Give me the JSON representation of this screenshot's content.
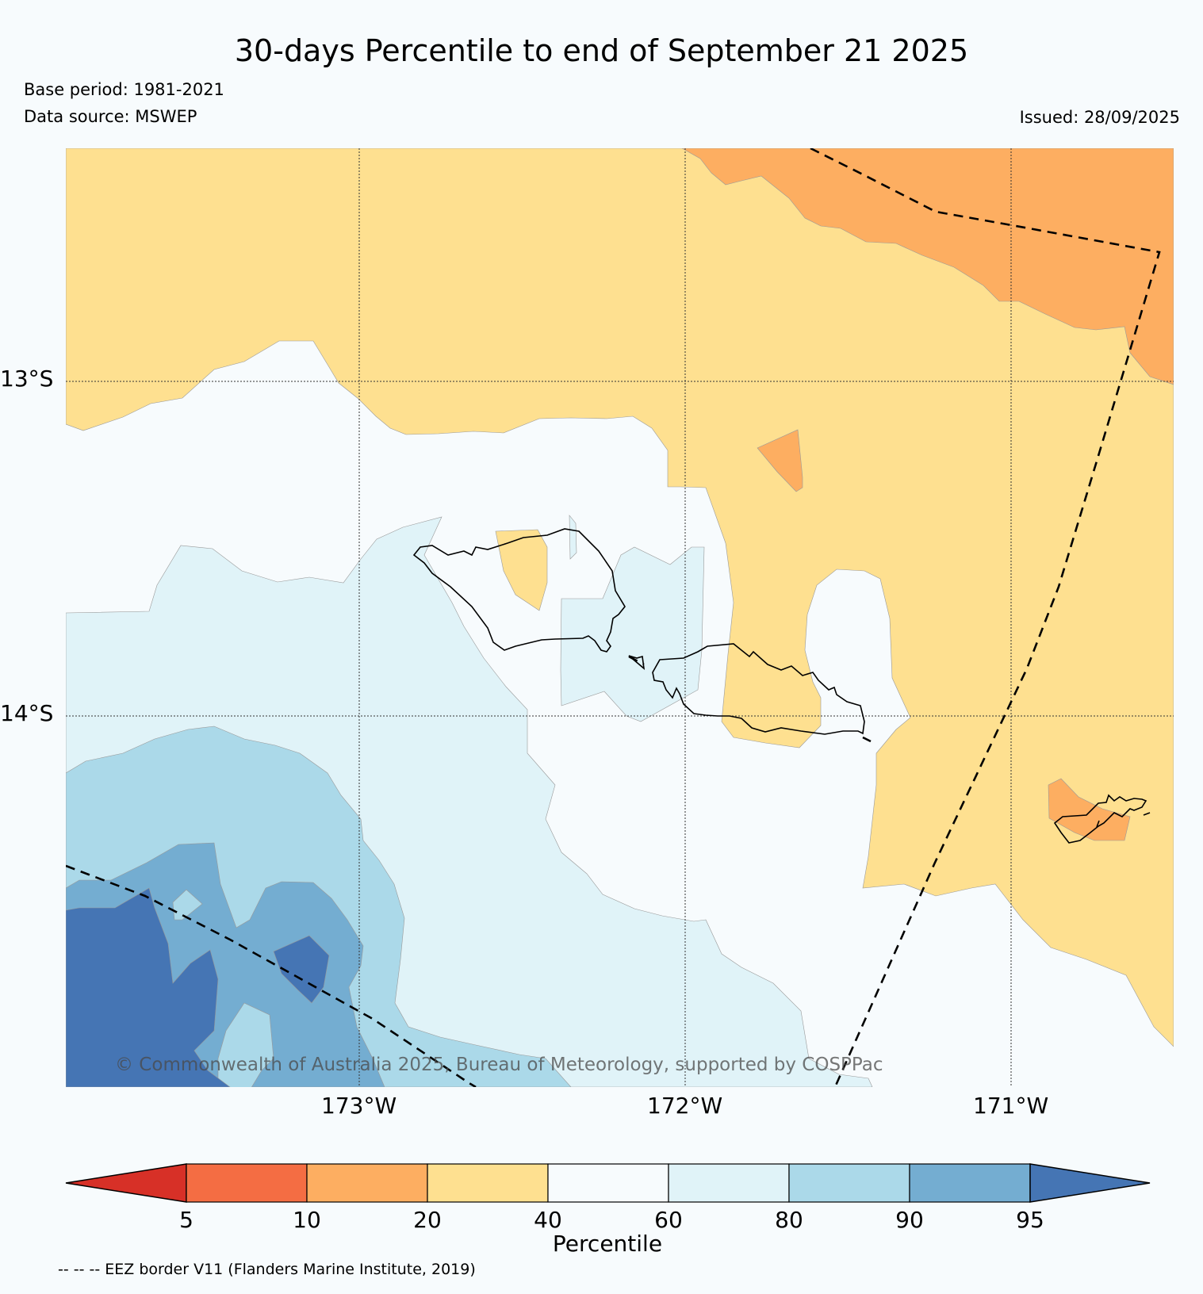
{
  "title": "30-days Percentile to end of September 21 2025",
  "base_period": "Base period: 1981-2021",
  "data_source": "Data source: MSWEP",
  "issued": "Issued: 28/09/2025",
  "map": {
    "lat_labels": [
      "13°S",
      "14°S"
    ],
    "lon_labels": [
      "173°W",
      "172°W",
      "171°W"
    ],
    "copyright": "© Commonwealth of Australia 2025, Bureau of Meteorology, supported by COSPPac"
  },
  "legend": {
    "ticks": [
      "5",
      "10",
      "20",
      "40",
      "60",
      "80",
      "90",
      "95"
    ],
    "label": "Percentile",
    "colors": [
      "#d73027",
      "#f46d43",
      "#fdae61",
      "#fee090",
      "#f7fbfd",
      "#e0f3f8",
      "#abd9e9",
      "#74add1",
      "#4575b4"
    ]
  },
  "eez_note": "-- -- -- EEZ border V11 (Flanders Marine Institute, 2019)"
}
